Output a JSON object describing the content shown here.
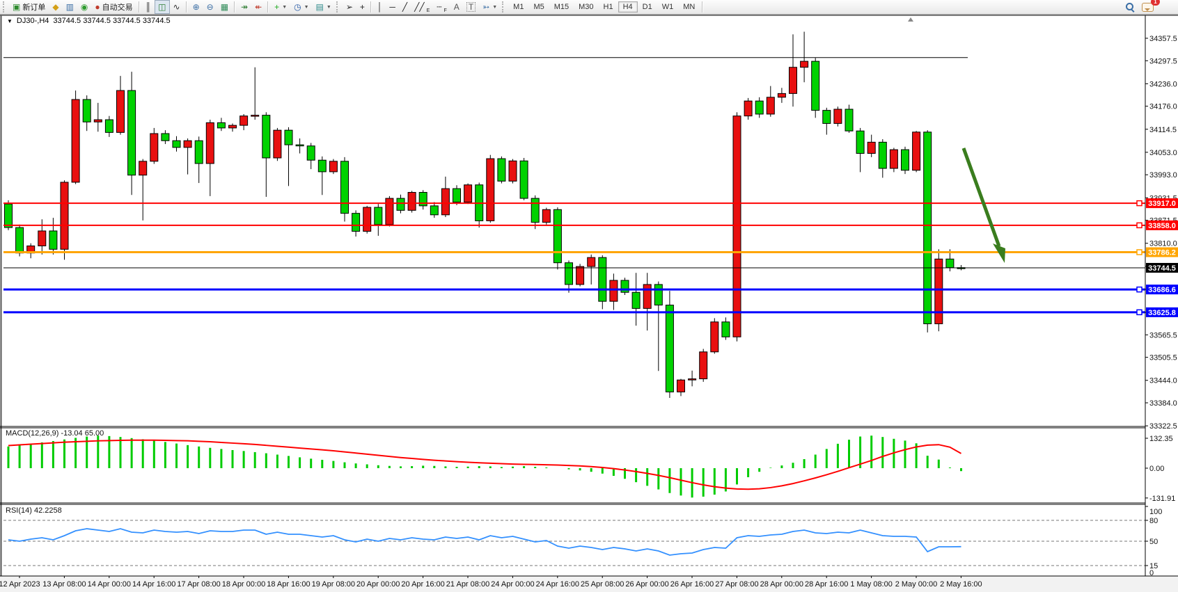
{
  "toolbar": {
    "chat_badge": "1",
    "items": [
      {
        "type": "grip"
      },
      {
        "type": "button",
        "name": "new-order-button",
        "icon": "new-order-icon",
        "glyph": "▣",
        "color": "#2e8b2e",
        "label": "新订单"
      },
      {
        "type": "icon",
        "name": "profiles-icon",
        "glyph": "◆",
        "color": "#d4a017"
      },
      {
        "type": "icon",
        "name": "market-watch-icon",
        "glyph": "▥",
        "color": "#3a6ea5"
      },
      {
        "type": "icon",
        "name": "signals-icon",
        "glyph": "◉",
        "color": "#2e9b2e"
      },
      {
        "type": "button",
        "name": "auto-trading-button",
        "icon": "auto-trading-icon",
        "glyph": "●",
        "color": "#c03a2b",
        "label": "自动交易"
      },
      {
        "type": "sep"
      },
      {
        "type": "icon",
        "name": "bar-chart-icon",
        "glyph": "║",
        "color": "#333"
      },
      {
        "type": "icon",
        "name": "candlestick-chart-icon",
        "glyph": "◫",
        "color": "#2e7d32",
        "active": true
      },
      {
        "type": "icon",
        "name": "line-chart-icon",
        "glyph": "∿",
        "color": "#333"
      },
      {
        "type": "sep"
      },
      {
        "type": "icon",
        "name": "zoom-in-icon",
        "glyph": "⊕",
        "color": "#3a6ea5"
      },
      {
        "type": "icon",
        "name": "zoom-out-icon",
        "glyph": "⊖",
        "color": "#3a6ea5"
      },
      {
        "type": "icon",
        "name": "tile-windows-icon",
        "glyph": "▦",
        "color": "#2e8b57"
      },
      {
        "type": "sep"
      },
      {
        "type": "icon",
        "name": "auto-scroll-icon",
        "glyph": "↠",
        "color": "#2e7d32"
      },
      {
        "type": "icon",
        "name": "chart-shift-icon",
        "glyph": "↞",
        "color": "#c03a2b"
      },
      {
        "type": "sep"
      },
      {
        "type": "icon",
        "name": "indicators-icon",
        "glyph": "+",
        "color": "#1faa1f",
        "dropdown": true
      },
      {
        "type": "icon",
        "name": "periods-icon",
        "glyph": "◷",
        "color": "#2458a5",
        "dropdown": true
      },
      {
        "type": "icon",
        "name": "templates-icon",
        "glyph": "▤",
        "color": "#2e8b8b",
        "dropdown": true
      },
      {
        "type": "grip"
      },
      {
        "type": "icon",
        "name": "cursor-icon",
        "glyph": "➢",
        "color": "#222"
      },
      {
        "type": "icon",
        "name": "crosshair-icon",
        "glyph": "+",
        "color": "#222"
      },
      {
        "type": "sep"
      },
      {
        "type": "icon",
        "name": "vertical-line-icon",
        "glyph": "│",
        "color": "#222"
      },
      {
        "type": "icon",
        "name": "horizontal-line-icon",
        "glyph": "─",
        "color": "#222"
      },
      {
        "type": "icon",
        "name": "trendline-icon",
        "glyph": "╱",
        "color": "#222"
      },
      {
        "type": "icon",
        "name": "equidistant-channel-icon",
        "glyph": "╱╱",
        "sub": "E",
        "color": "#222"
      },
      {
        "type": "icon",
        "name": "fibonacci-icon",
        "glyph": "┄",
        "sub": "F",
        "color": "#222"
      },
      {
        "type": "icon",
        "name": "text-icon",
        "glyph": "A",
        "color": "#555"
      },
      {
        "type": "icon",
        "name": "text-label-icon",
        "glyph": "T",
        "color": "#555",
        "boxed": true
      },
      {
        "type": "icon",
        "name": "arrows-shapes-icon",
        "glyph": "➳",
        "color": "#3a6ea5",
        "dropdown": true
      },
      {
        "type": "grip"
      },
      {
        "type": "tf",
        "name": "timeframe-m1",
        "label": "M1"
      },
      {
        "type": "tf",
        "name": "timeframe-m5",
        "label": "M5"
      },
      {
        "type": "tf",
        "name": "timeframe-m15",
        "label": "M15"
      },
      {
        "type": "tf",
        "name": "timeframe-m30",
        "label": "M30"
      },
      {
        "type": "tf",
        "name": "timeframe-h1",
        "label": "H1"
      },
      {
        "type": "tf",
        "name": "timeframe-h4",
        "label": "H4",
        "active": true
      },
      {
        "type": "tf",
        "name": "timeframe-d1",
        "label": "D1"
      },
      {
        "type": "tf",
        "name": "timeframe-w1",
        "label": "W1"
      },
      {
        "type": "tf",
        "name": "timeframe-mn",
        "label": "MN"
      },
      {
        "type": "sep"
      },
      {
        "type": "spacer"
      },
      {
        "type": "search"
      },
      {
        "type": "chat"
      }
    ]
  },
  "quote_bar": {
    "collapse_glyph": "▼",
    "symbol_period": "DJ30-,H4",
    "quotes": "33744.5 33744.5 33744.5 33744.5"
  },
  "chart_data": {
    "type": "candlestick+indicators",
    "symbol": "DJ30-",
    "period": "H4",
    "grid": false,
    "price_axis": {
      "ticks": [
        "34357.5",
        "34297.5",
        "34236.0",
        "34176.0",
        "34114.5",
        "34053.0",
        "33993.0",
        "33931.5",
        "33871.5",
        "33810.0",
        "33748.5",
        "33687.0",
        "33625.5",
        "33565.5",
        "33505.5",
        "33444.0",
        "33384.0",
        "33322.5"
      ]
    },
    "x_axis": {
      "labels": [
        "12 Apr 2023",
        "13 Apr 08:00",
        "14 Apr 00:00",
        "14 Apr 16:00",
        "17 Apr 08:00",
        "18 Apr 00:00",
        "18 Apr 16:00",
        "19 Apr 08:00",
        "20 Apr 00:00",
        "20 Apr 16:00",
        "21 Apr 08:00",
        "24 Apr 00:00",
        "24 Apr 16:00",
        "25 Apr 08:00",
        "26 Apr 00:00",
        "26 Apr 16:00",
        "27 Apr 08:00",
        "28 Apr 00:00",
        "28 Apr 16:00",
        "1 May 08:00",
        "2 May 00:00",
        "2 May 16:00"
      ]
    },
    "h_lines": [
      {
        "price": 34306.0,
        "color": "#000000",
        "width": 1,
        "label": null,
        "short": true
      },
      {
        "price": 33917.0,
        "color": "#ff0000",
        "width": 2,
        "label": "33917.0"
      },
      {
        "price": 33858.0,
        "color": "#ff0000",
        "width": 2,
        "label": "33858.0"
      },
      {
        "price": 33786.2,
        "color": "#ffa500",
        "width": 3,
        "label": "33786.2"
      },
      {
        "price": 33686.6,
        "color": "#0000ff",
        "width": 3,
        "label": "33686.6"
      },
      {
        "price": 33625.8,
        "color": "#0000ff",
        "width": 3,
        "label": "33625.8"
      }
    ],
    "current_price": {
      "value": 33744.5,
      "label": "33744.5",
      "color": "#000000"
    },
    "candles": [
      [
        33915,
        33925,
        33845,
        33852
      ],
      [
        33852,
        33860,
        33775,
        33784
      ],
      [
        33784,
        33810,
        33770,
        33803
      ],
      [
        33803,
        33874,
        33780,
        33843
      ],
      [
        33843,
        33878,
        33780,
        33794
      ],
      [
        33794,
        33978,
        33766,
        33973
      ],
      [
        33973,
        34218,
        33968,
        34194
      ],
      [
        34194,
        34205,
        34110,
        34134
      ],
      [
        34134,
        34185,
        34108,
        34140
      ],
      [
        34140,
        34150,
        34094,
        34106
      ],
      [
        34106,
        34257,
        34100,
        34218
      ],
      [
        34218,
        34268,
        33939,
        33992
      ],
      [
        33992,
        34035,
        33871,
        34029
      ],
      [
        34029,
        34118,
        34022,
        34103
      ],
      [
        34103,
        34112,
        34075,
        34084
      ],
      [
        34084,
        34096,
        34055,
        34066
      ],
      [
        34066,
        34090,
        33994,
        34084
      ],
      [
        34084,
        34095,
        33971,
        34023
      ],
      [
        34023,
        34140,
        33936,
        34132
      ],
      [
        34132,
        34145,
        34110,
        34118
      ],
      [
        34118,
        34130,
        34108,
        34125
      ],
      [
        34125,
        34155,
        34112,
        34150
      ],
      [
        34150,
        34280,
        34140,
        34152
      ],
      [
        34152,
        34160,
        33934,
        34038
      ],
      [
        34038,
        34118,
        34030,
        34112
      ],
      [
        34112,
        34120,
        33963,
        34073
      ],
      [
        34073,
        34090,
        34050,
        34070
      ],
      [
        34070,
        34078,
        34008,
        34032
      ],
      [
        34032,
        34042,
        33939,
        34001
      ],
      [
        34001,
        34035,
        33995,
        34029
      ],
      [
        34029,
        34040,
        33868,
        33890
      ],
      [
        33890,
        33898,
        33828,
        33842
      ],
      [
        33842,
        33910,
        33836,
        33906
      ],
      [
        33906,
        33915,
        33830,
        33860
      ],
      [
        33860,
        33936,
        33855,
        33930
      ],
      [
        33930,
        33940,
        33890,
        33898
      ],
      [
        33898,
        33950,
        33892,
        33946
      ],
      [
        33946,
        33952,
        33900,
        33910
      ],
      [
        33910,
        33920,
        33878,
        33886
      ],
      [
        33886,
        33988,
        33880,
        33956
      ],
      [
        33956,
        33965,
        33912,
        33920
      ],
      [
        33920,
        33970,
        33915,
        33966
      ],
      [
        33966,
        33972,
        33852,
        33870
      ],
      [
        33870,
        34046,
        33865,
        34036
      ],
      [
        34036,
        34042,
        33970,
        33976
      ],
      [
        33976,
        34035,
        33970,
        34030
      ],
      [
        34030,
        34038,
        33925,
        33930
      ],
      [
        33930,
        33938,
        33848,
        33866
      ],
      [
        33866,
        33905,
        33860,
        33900
      ],
      [
        33900,
        33906,
        33740,
        33758
      ],
      [
        33758,
        33764,
        33678,
        33700
      ],
      [
        33700,
        33755,
        33695,
        33748
      ],
      [
        33748,
        33780,
        33700,
        33772
      ],
      [
        33772,
        33778,
        33634,
        33655
      ],
      [
        33655,
        33729,
        33632,
        33711
      ],
      [
        33711,
        33718,
        33672,
        33679
      ],
      [
        33679,
        33731,
        33590,
        33636
      ],
      [
        33636,
        33731,
        33577,
        33700
      ],
      [
        33700,
        33708,
        33469,
        33645
      ],
      [
        33645,
        33683,
        33397,
        33413
      ],
      [
        33413,
        33448,
        33402,
        33445
      ],
      [
        33445,
        33470,
        33428,
        33448
      ],
      [
        33448,
        33528,
        33440,
        33520
      ],
      [
        33520,
        33610,
        33515,
        33600
      ],
      [
        33600,
        33612,
        33552,
        33560
      ],
      [
        33560,
        34160,
        33548,
        34150
      ],
      [
        34150,
        34198,
        34140,
        34190
      ],
      [
        34190,
        34200,
        34145,
        34155
      ],
      [
        34155,
        34230,
        34148,
        34200
      ],
      [
        34200,
        34225,
        34185,
        34210
      ],
      [
        34210,
        34368,
        34175,
        34280
      ],
      [
        34280,
        34375,
        34240,
        34296
      ],
      [
        34296,
        34305,
        34145,
        34165
      ],
      [
        34165,
        34172,
        34100,
        34130
      ],
      [
        34130,
        34175,
        34122,
        34168
      ],
      [
        34168,
        34180,
        34105,
        34110
      ],
      [
        34110,
        34118,
        34000,
        34050
      ],
      [
        34050,
        34100,
        34040,
        34080
      ],
      [
        34080,
        34088,
        33985,
        34010
      ],
      [
        34010,
        34065,
        34000,
        34060
      ],
      [
        34060,
        34068,
        33995,
        34005
      ],
      [
        34005,
        34110,
        34000,
        34107
      ],
      [
        34107,
        34112,
        33572,
        33595
      ],
      [
        33595,
        33794,
        33575,
        33768
      ],
      [
        33768,
        33794,
        33735,
        33745
      ],
      [
        33745,
        33752,
        33738,
        33744.5
      ]
    ],
    "macd": {
      "label": "MACD(12,26,9) -13.04 65.00",
      "ticks": [
        "132.35",
        "0.00",
        "-131.91"
      ],
      "histogram": [
        96,
        102,
        108,
        114,
        120,
        127,
        134,
        140,
        144,
        142,
        138,
        133,
        128,
        122,
        116,
        109,
        102,
        96,
        90,
        85,
        80,
        76,
        71,
        66,
        60,
        54,
        48,
        42,
        37,
        32,
        26,
        21,
        17,
        13,
        10,
        8,
        9,
        11,
        10,
        8,
        6,
        7,
        9,
        8,
        5,
        7,
        9,
        6,
        3,
        0,
        -5,
        -10,
        -16,
        -24,
        -34,
        -47,
        -62,
        -78,
        -94,
        -110,
        -121,
        -130,
        -126,
        -117,
        -103,
        -72,
        -40,
        -16,
        2,
        12,
        24,
        40,
        60,
        85,
        108,
        126,
        140,
        144,
        138,
        130,
        122,
        110,
        55,
        38,
        3,
        -13
      ],
      "signal": [
        100,
        103,
        106,
        109,
        112,
        115,
        117,
        119,
        121,
        122,
        123,
        124,
        124,
        124,
        123,
        122,
        121,
        119,
        117,
        114,
        111,
        108,
        105,
        101,
        97,
        93,
        89,
        85,
        81,
        77,
        72,
        67,
        62,
        57,
        52,
        47,
        43,
        39,
        35,
        32,
        29,
        26,
        24,
        22,
        20,
        18,
        17,
        16,
        15,
        14,
        12,
        10,
        7,
        3,
        -2,
        -8,
        -15,
        -23,
        -32,
        -42,
        -53,
        -64,
        -74,
        -82,
        -88,
        -92,
        -93,
        -91,
        -86,
        -78,
        -68,
        -56,
        -43,
        -29,
        -14,
        2,
        18,
        34,
        52,
        68,
        82,
        94,
        102,
        104,
        93,
        65
      ]
    },
    "rsi": {
      "label": "RSI(14) 42.2258",
      "ticks": [
        "100",
        "80",
        "50",
        "15",
        "0"
      ],
      "dashed_levels": [
        80,
        50,
        15
      ],
      "values": [
        52,
        50,
        53,
        55,
        52,
        58,
        65,
        68,
        66,
        64,
        68,
        63,
        62,
        66,
        64,
        63,
        64,
        61,
        65,
        64,
        64,
        66,
        66,
        60,
        63,
        60,
        60,
        58,
        56,
        58,
        52,
        49,
        53,
        50,
        54,
        52,
        55,
        53,
        52,
        56,
        54,
        56,
        52,
        58,
        55,
        57,
        53,
        49,
        51,
        43,
        40,
        43,
        41,
        38,
        41,
        39,
        36,
        39,
        36,
        30,
        32,
        33,
        38,
        41,
        40,
        55,
        58,
        57,
        59,
        60,
        64,
        66,
        62,
        61,
        63,
        62,
        66,
        62,
        58,
        57,
        57,
        56,
        35,
        42,
        42,
        42.2
      ]
    },
    "annotation_arrow": {
      "from": [
        1384,
        213
      ],
      "to": [
        1443,
        378
      ],
      "color": "#3a7d1e"
    },
    "colors": {
      "bull_candle": "#e81010",
      "bear_candle": "#00d200",
      "candle_outline": "#000000",
      "macd_histogram": "#00cc00",
      "macd_signal": "#ff0000",
      "rsi_line": "#3390ff",
      "axis_text": "#111111",
      "panel_bg": "#ffffff"
    }
  }
}
